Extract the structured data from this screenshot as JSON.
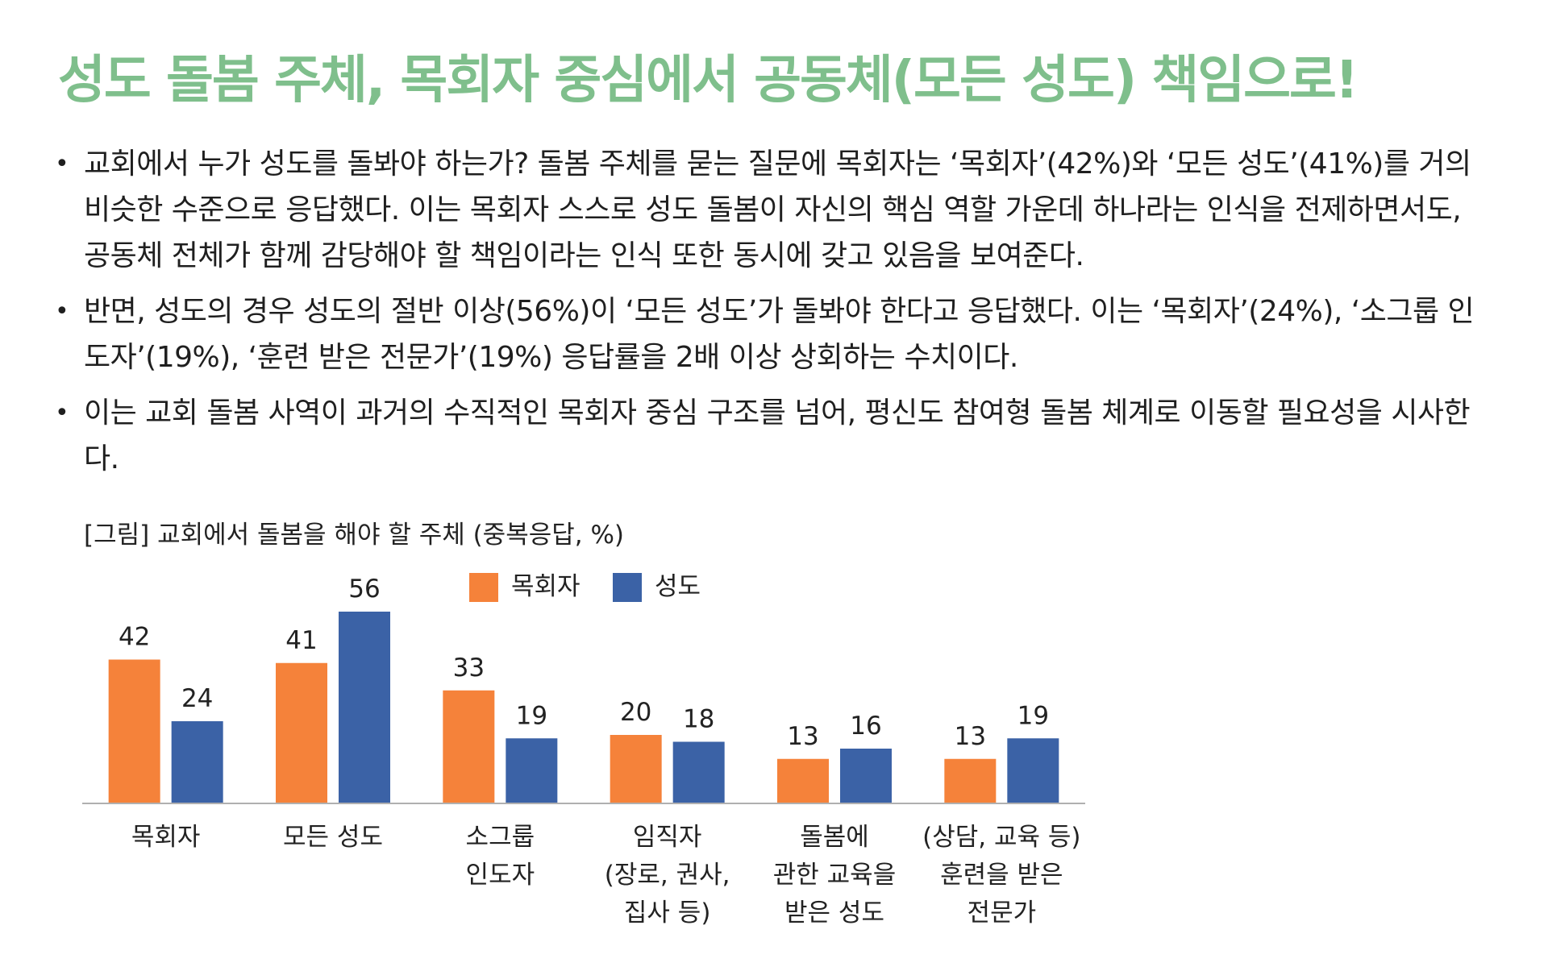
{
  "title": "성도 돌봄 주체, 목회자 중심에서 공동체(모든 성도) 책임으로!",
  "bullets": [
    "교회에서 누가 성도를 돌봐야 하는가? 돌봄 주체를 묻는 질문에 목회자는 ‘목회자’(42%)와 ‘모든 성도’(41%)를 거의 비슷한 수준으로 응답했다. 이는 목회자 스스로 성도 돌봄이 자신의 핵심 역할 가운데 하나라는 인식을 전제하면서도, 공동체 전체가 함께 감당해야 할 책임이라는 인식 또한 동시에 갖고 있음을 보여준다.",
    "반면, 성도의 경우 성도의 절반 이상(56%)이 ‘모든 성도’가 돌봐야 한다고 응답했다. 이는 ‘목회자’(24%), ‘소그룹 인도자’(19%), ‘훈련 받은 전문가’(19%) 응답률을 2배 이상 상회하는 수치이다.",
    "이는 교회 돌봄 사역이 과거의 수직적인 목회자 중심 구조를 넘어, 평신도 참여형 돌봄 체계로 이동할 필요성을 시사한다."
  ],
  "bullet_marker": "•",
  "chart_caption": "[그림] 교회에서 돌봄을 해야 할 주체 (중복응답, %)",
  "chart_data": {
    "type": "bar",
    "title": "[그림] 교회에서 돌봄을 해야 할 주체 (중복응답, %)",
    "categories": [
      [
        "목회자"
      ],
      [
        "모든 성도"
      ],
      [
        "소그룹",
        "인도자"
      ],
      [
        "임직자",
        "(장로, 권사,",
        "집사 등)"
      ],
      [
        "돌봄에",
        "관한 교육을",
        "받은 성도"
      ],
      [
        "(상담, 교육 등)",
        "훈련을 받은",
        "전문가"
      ]
    ],
    "series": [
      {
        "name": "목회자",
        "color": "#f5823a",
        "values": [
          42,
          41,
          33,
          20,
          13,
          13
        ]
      },
      {
        "name": "성도",
        "color": "#3b62a6",
        "values": [
          24,
          56,
          19,
          18,
          16,
          19
        ]
      }
    ],
    "ylim": [
      0,
      60
    ],
    "grid": false,
    "legend": "top-center",
    "data_labels": true
  }
}
